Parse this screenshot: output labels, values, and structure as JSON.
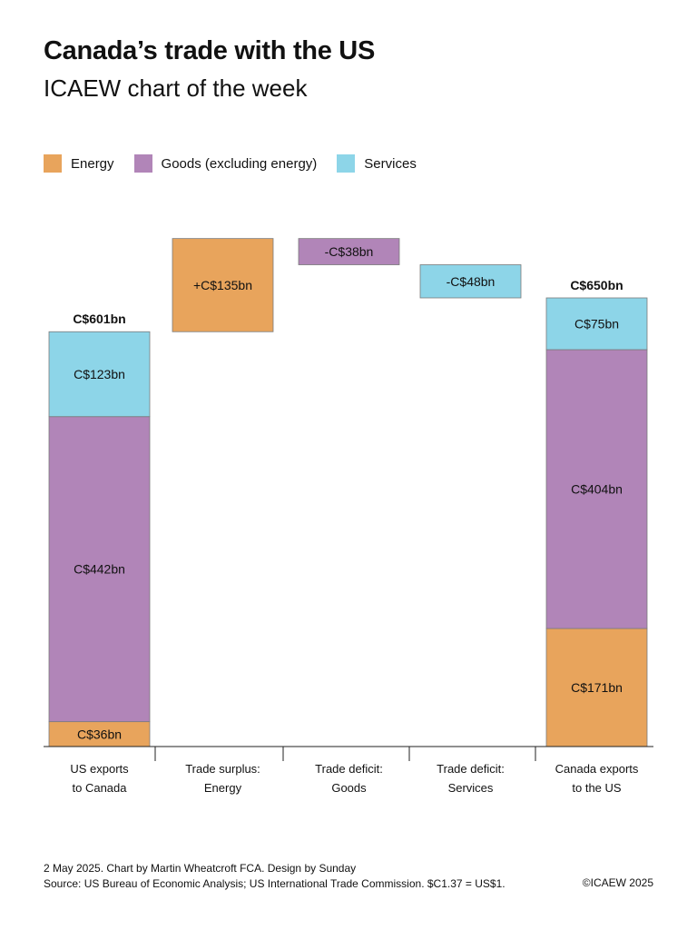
{
  "header": {
    "title": "Canada’s trade with the US",
    "subtitle": "ICAEW chart of the week"
  },
  "legend": [
    {
      "label": "Energy",
      "color": "#E8A45C"
    },
    {
      "label": "Goods (excluding energy)",
      "color": "#B185B8"
    },
    {
      "label": "Services",
      "color": "#8DD5E8"
    }
  ],
  "chart_data": {
    "type": "bar",
    "subtype": "waterfall",
    "categories": [
      "US exports\nto Canada",
      "Trade surplus:\nEnergy",
      "Trade deficit:\nGoods",
      "Trade deficit:\nServices",
      "Canada exports\nto the US"
    ],
    "segments": [
      {
        "category": 0,
        "series": "Energy",
        "base": 0,
        "value": 36,
        "label": "C$36bn"
      },
      {
        "category": 0,
        "series": "Goods (excluding energy)",
        "base": 36,
        "value": 442,
        "label": "C$442bn"
      },
      {
        "category": 0,
        "series": "Services",
        "base": 478,
        "value": 123,
        "label": "C$123bn"
      },
      {
        "category": 1,
        "series": "Energy",
        "base": 601,
        "value": 135,
        "label": "+C$135bn"
      },
      {
        "category": 2,
        "series": "Goods (excluding energy)",
        "base": 698,
        "value": 38,
        "label": "-C$38bn"
      },
      {
        "category": 3,
        "series": "Services",
        "base": 650,
        "value": 48,
        "label": "-C$48bn"
      },
      {
        "category": 4,
        "series": "Energy",
        "base": 0,
        "value": 171,
        "label": "C$171bn"
      },
      {
        "category": 4,
        "series": "Goods (excluding energy)",
        "base": 171,
        "value": 404,
        "label": "C$404bn"
      },
      {
        "category": 4,
        "series": "Services",
        "base": 575,
        "value": 75,
        "label": "C$75bn"
      }
    ],
    "totals": [
      {
        "category": 0,
        "value": 601,
        "label": "C$601bn"
      },
      {
        "category": 4,
        "value": 650,
        "label": "C$650bn"
      }
    ],
    "ylim": [
      0,
      736
    ],
    "grid": false
  },
  "footer": {
    "line1": "2 May 2025.  Chart by Martin Wheatcroft FCA.  Design by Sunday",
    "line2": "Source: US Bureau of Economic Analysis; US International Trade Commission. $C1.37 = US$1.",
    "copyright": "©ICAEW 2025"
  }
}
